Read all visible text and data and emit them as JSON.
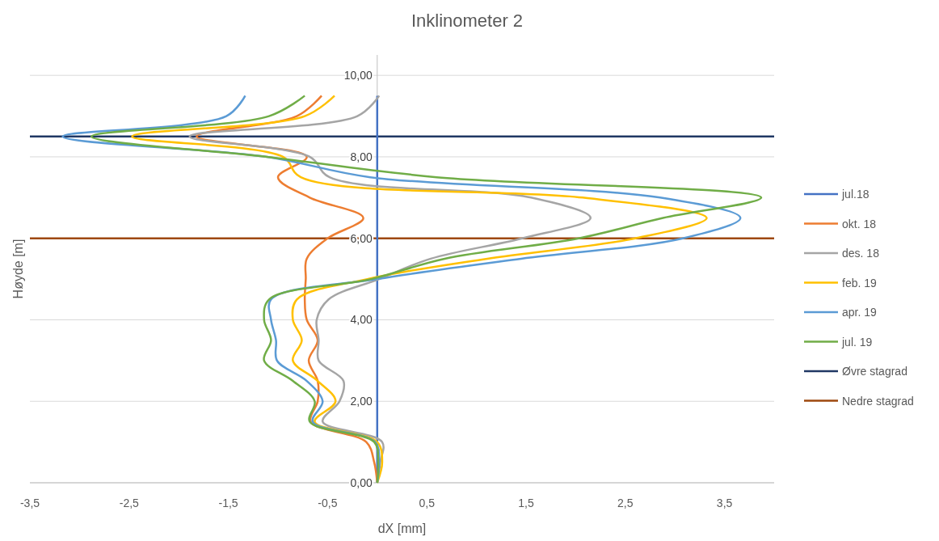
{
  "chart_data": {
    "type": "line",
    "title": "Inklinometer 2",
    "xlabel": "dX [mm]",
    "ylabel": "Høyde [m]",
    "xlim": [
      -3.5,
      4
    ],
    "xticks": [
      {
        "value": -3.5,
        "label": "-3,5"
      },
      {
        "value": -2.5,
        "label": "-2,5"
      },
      {
        "value": -1.5,
        "label": "-1,5"
      },
      {
        "value": -0.5,
        "label": "-0,5"
      },
      {
        "value": 0.5,
        "label": "0,5"
      },
      {
        "value": 1.5,
        "label": "1,5"
      },
      {
        "value": 2.5,
        "label": "2,5"
      },
      {
        "value": 3.5,
        "label": "3,5"
      }
    ],
    "ylim": [
      0,
      10.5
    ],
    "yticks": [
      {
        "value": 0,
        "label": "0,00"
      },
      {
        "value": 2,
        "label": "2,00"
      },
      {
        "value": 4,
        "label": "4,00"
      },
      {
        "value": 6,
        "label": "6,00"
      },
      {
        "value": 8,
        "label": "8,00"
      },
      {
        "value": 10,
        "label": "10,00"
      }
    ],
    "grid": "y",
    "legend": "right",
    "marker": "none",
    "line_style": "solid",
    "series": [
      {
        "name": "jul.18",
        "color": "#4472c4",
        "x": [
          0,
          0,
          0,
          0,
          0,
          0,
          0,
          0,
          0,
          0,
          0,
          0,
          0,
          0,
          0,
          0,
          0,
          0,
          0,
          0
        ],
        "values": [
          0,
          0.5,
          1,
          1.5,
          2,
          2.5,
          3,
          3.5,
          4,
          4.5,
          5,
          5.5,
          6,
          6.5,
          7,
          7.5,
          8,
          8.5,
          9,
          9.5
        ]
      },
      {
        "name": "okt. 18",
        "color": "#ed7d31",
        "x": [
          0,
          -0.03,
          -0.11,
          -0.67,
          -0.6,
          -0.6,
          -0.69,
          -0.6,
          -0.71,
          -0.73,
          -0.72,
          -0.71,
          -0.5,
          -0.14,
          -0.68,
          -1.0,
          -0.71,
          -1.82,
          -0.81,
          -0.56
        ],
        "values": [
          0,
          0.5,
          1,
          1.5,
          2,
          2.5,
          3,
          3.5,
          4,
          4.5,
          5,
          5.5,
          6,
          6.5,
          7,
          7.5,
          8,
          8.5,
          9,
          9.5
        ]
      },
      {
        "name": "des. 18",
        "color": "#a5a5a5",
        "x": [
          0,
          0.03,
          0.05,
          -0.55,
          -0.38,
          -0.34,
          -0.59,
          -0.59,
          -0.61,
          -0.49,
          0.02,
          0.54,
          1.46,
          2.15,
          1.55,
          -0.48,
          -0.68,
          -1.89,
          -0.2,
          0.02
        ],
        "values": [
          0,
          0.5,
          1,
          1.5,
          2,
          2.5,
          3,
          3.5,
          4,
          4.5,
          5,
          5.5,
          6,
          6.5,
          7,
          7.5,
          8,
          8.5,
          9,
          9.5
        ]
      },
      {
        "name": "feb. 19",
        "color": "#ffc000",
        "x": [
          0,
          0.05,
          0,
          -0.63,
          -0.42,
          -0.6,
          -0.85,
          -0.76,
          -0.85,
          -0.81,
          -0.1,
          1.11,
          2.6,
          3.32,
          2.07,
          -0.77,
          -0.95,
          -2.47,
          -0.73,
          -0.43
        ],
        "values": [
          0,
          0.5,
          1,
          1.5,
          2,
          2.5,
          3,
          3.5,
          4,
          4.5,
          5,
          5.5,
          6,
          6.5,
          7,
          7.5,
          8,
          8.5,
          9,
          9.5
        ]
      },
      {
        "name": "apr. 19",
        "color": "#5b9bd5",
        "x": [
          0,
          0.02,
          -0.02,
          -0.65,
          -0.55,
          -0.71,
          -1.01,
          -1.02,
          -1.07,
          -1.07,
          0,
          1.45,
          3.08,
          3.66,
          2.85,
          -0.07,
          -1.11,
          -3.17,
          -1.52,
          -1.33
        ],
        "values": [
          0,
          0.5,
          1,
          1.5,
          2,
          2.5,
          3,
          3.5,
          4,
          4.5,
          5,
          5.5,
          6,
          6.5,
          7,
          7.5,
          8,
          8.5,
          9,
          9.5
        ]
      },
      {
        "name": "jul. 19",
        "color": "#70ad47",
        "x": [
          0,
          0.01,
          -0.03,
          -0.68,
          -0.63,
          -0.85,
          -1.14,
          -1.07,
          -1.14,
          -1.09,
          -0.06,
          0.68,
          2.03,
          2.88,
          3.87,
          0.6,
          -1.11,
          -2.88,
          -1.09,
          -0.73
        ],
        "values": [
          0,
          0.5,
          1,
          1.5,
          2,
          2.5,
          3,
          3.5,
          4,
          4.5,
          5,
          5.5,
          6,
          6.5,
          7,
          7.5,
          8,
          8.5,
          9,
          9.5
        ]
      }
    ],
    "ref_lines": [
      {
        "axis": "y",
        "value": 8.5,
        "label": "Øvre stagrad",
        "color": "#203864"
      },
      {
        "axis": "y",
        "value": 6,
        "label": "Nedre stagrad",
        "color": "#9e480e"
      }
    ]
  }
}
